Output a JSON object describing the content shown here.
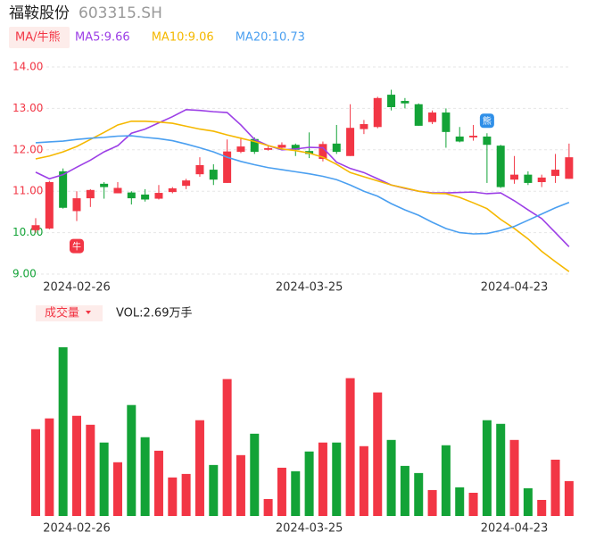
{
  "chart_data": {
    "type": "candlestick",
    "title": "福鞍股份",
    "subtitle": "603315.SH",
    "indicator_label": "MA/牛熊",
    "categories": [
      null,
      null,
      null,
      "2024-02-26",
      null,
      null,
      null,
      null,
      null,
      null,
      null,
      null,
      null,
      null,
      null,
      null,
      null,
      null,
      null,
      null,
      "2024-03-25",
      null,
      null,
      null,
      null,
      null,
      null,
      null,
      null,
      null,
      null,
      null,
      null,
      null,
      null,
      "2024-04-23",
      null,
      null,
      null,
      null
    ],
    "open": [
      10.06,
      10.1,
      11.48,
      10.52,
      10.83,
      11.18,
      10.95,
      10.97,
      10.92,
      10.82,
      10.98,
      11.13,
      11.41,
      11.52,
      11.2,
      11.95,
      12.26,
      12.0,
      12.05,
      12.12,
      11.97,
      11.78,
      12.15,
      11.85,
      12.5,
      12.55,
      13.33,
      13.18,
      13.1,
      12.67,
      12.9,
      12.32,
      12.3,
      12.32,
      12.1,
      11.28,
      11.4,
      11.22,
      11.37,
      11.3
    ],
    "close": [
      10.18,
      11.22,
      10.6,
      10.83,
      11.03,
      11.1,
      11.08,
      10.83,
      10.8,
      10.96,
      11.07,
      11.26,
      11.63,
      11.28,
      11.96,
      12.08,
      11.95,
      12.04,
      12.12,
      12.0,
      11.9,
      12.14,
      11.95,
      12.53,
      12.62,
      13.25,
      13.03,
      13.12,
      12.58,
      12.9,
      12.43,
      12.2,
      12.34,
      12.12,
      11.1,
      11.4,
      11.2,
      11.33,
      11.52,
      11.82
    ],
    "high": [
      10.35,
      11.25,
      11.55,
      11.0,
      11.05,
      11.22,
      11.22,
      11.0,
      11.05,
      11.15,
      11.1,
      11.3,
      11.82,
      11.65,
      12.25,
      12.3,
      12.3,
      12.1,
      12.18,
      12.15,
      12.42,
      12.2,
      12.6,
      13.1,
      12.72,
      13.28,
      13.45,
      13.25,
      13.12,
      12.95,
      13.0,
      12.55,
      12.6,
      12.4,
      12.12,
      11.85,
      11.48,
      11.4,
      11.9,
      12.15
    ],
    "low": [
      10.0,
      10.08,
      10.58,
      10.28,
      10.62,
      10.82,
      10.95,
      10.68,
      10.75,
      10.8,
      10.95,
      11.05,
      11.35,
      11.15,
      11.2,
      11.92,
      11.9,
      11.98,
      12.02,
      11.85,
      11.8,
      11.72,
      11.9,
      11.85,
      12.38,
      12.52,
      12.95,
      13.0,
      12.58,
      12.62,
      12.05,
      12.18,
      12.22,
      11.2,
      11.08,
      11.18,
      11.15,
      11.1,
      11.2,
      11.3
    ],
    "up_color": "#f23645",
    "down_color": "#13a337",
    "series": [
      {
        "name": "MA5:9.66",
        "color": "#9c3fe6",
        "values": [
          11.46,
          11.3,
          11.4,
          11.58,
          11.75,
          11.95,
          12.1,
          12.4,
          12.5,
          12.65,
          12.8,
          12.97,
          12.95,
          12.92,
          12.9,
          12.6,
          12.25,
          12.1,
          12.0,
          12.02,
          12.06,
          12.05,
          11.7,
          11.55,
          11.45,
          11.3,
          11.15,
          11.07,
          11.0,
          10.96,
          10.96,
          10.97,
          10.98,
          10.94,
          10.96,
          10.77,
          10.55,
          10.34,
          10.0,
          9.66
        ]
      },
      {
        "name": "MA10:9.06",
        "color": "#f5b800",
        "values": [
          11.78,
          11.85,
          11.95,
          12.08,
          12.25,
          12.42,
          12.6,
          12.69,
          12.69,
          12.67,
          12.64,
          12.57,
          12.5,
          12.45,
          12.36,
          12.28,
          12.2,
          12.1,
          12.02,
          11.98,
          11.92,
          11.82,
          11.65,
          11.45,
          11.35,
          11.25,
          11.15,
          11.08,
          11.0,
          10.95,
          10.94,
          10.85,
          10.72,
          10.58,
          10.32,
          10.1,
          9.85,
          9.55,
          9.3,
          9.06
        ]
      },
      {
        "name": "MA20:10.73",
        "color": "#4a9ff0",
        "values": [
          12.17,
          12.19,
          12.21,
          12.25,
          12.28,
          12.3,
          12.33,
          12.34,
          12.3,
          12.27,
          12.22,
          12.14,
          12.05,
          11.95,
          11.82,
          11.72,
          11.64,
          11.57,
          11.52,
          11.47,
          11.42,
          11.36,
          11.28,
          11.15,
          11.0,
          10.88,
          10.7,
          10.55,
          10.42,
          10.25,
          10.1,
          10.0,
          9.97,
          9.98,
          10.05,
          10.15,
          10.3,
          10.45,
          10.6,
          10.73
        ]
      }
    ],
    "ylim": [
      9,
      14
    ],
    "yticks": [
      {
        "value": 14,
        "label": "14.00"
      },
      {
        "value": 13,
        "label": "13.00"
      },
      {
        "value": 12,
        "label": "12.00"
      },
      {
        "value": 11,
        "label": "11.00"
      },
      {
        "value": 10,
        "label": "10.00"
      },
      {
        "value": 9,
        "label": "9.00"
      }
    ],
    "ytick_colors": [
      "#f23645",
      "#f23645",
      "#f23645",
      "#f23645",
      "#13a337",
      "#13a337"
    ],
    "grid": true,
    "signals": [
      {
        "index": 3,
        "label": "牛",
        "color": "#f23645"
      },
      {
        "index": 33,
        "label": "熊",
        "color": "#2f8fe8"
      }
    ],
    "volume": {
      "button": "成交量",
      "label": "VOL:2.69万手",
      "values": [
        6.69,
        7.52,
        13.0,
        7.72,
        7.03,
        5.66,
        4.14,
        8.55,
        6.07,
        5.03,
        2.97,
        3.24,
        7.38,
        3.93,
        10.55,
        4.69,
        6.34,
        1.31,
        3.72,
        3.45,
        4.97,
        5.66,
        5.66,
        10.62,
        5.38,
        9.52,
        5.86,
        3.86,
        3.31,
        2.0,
        5.45,
        2.21,
        1.79,
        7.38,
        7.1,
        5.86,
        2.14,
        1.24,
        4.34,
        2.69
      ]
    }
  }
}
